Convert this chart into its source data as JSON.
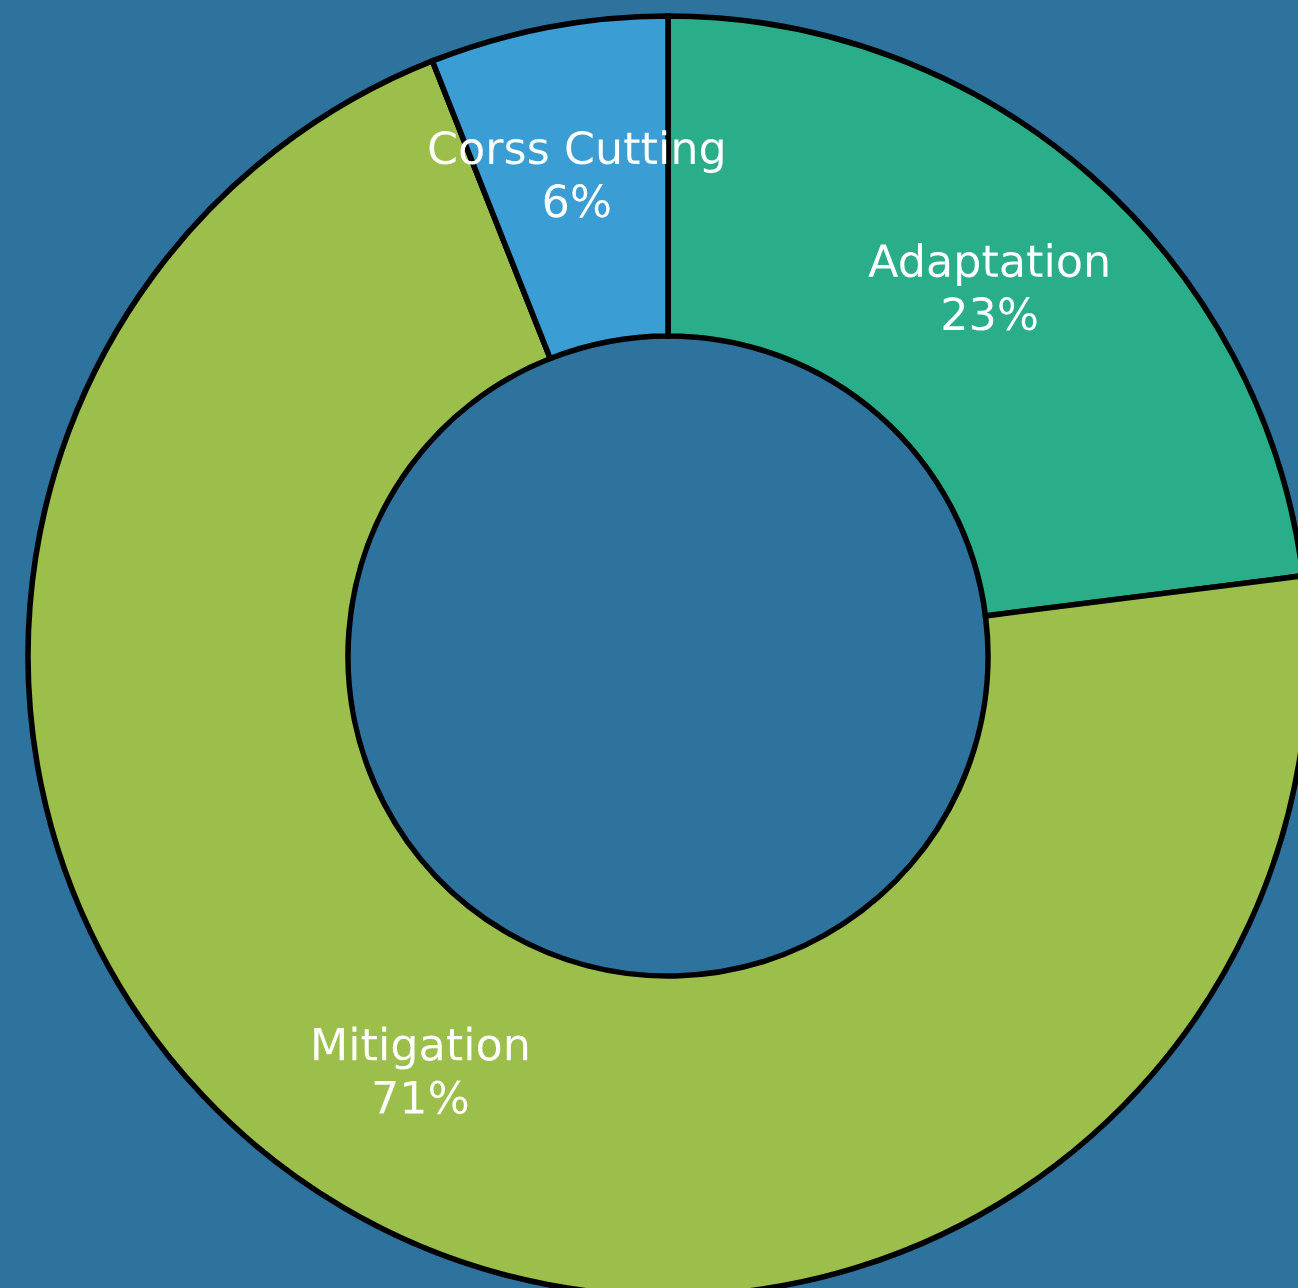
{
  "chart_data": {
    "type": "donut",
    "categories": [
      "Adaptation",
      "Mitigation",
      "Corss Cutting"
    ],
    "values": [
      23,
      71,
      6
    ],
    "colors": [
      "#2aae8a",
      "#9bbf4a",
      "#3a9ed4"
    ],
    "value_labels": [
      "23%",
      "71%",
      "6%"
    ],
    "legend": false
  }
}
